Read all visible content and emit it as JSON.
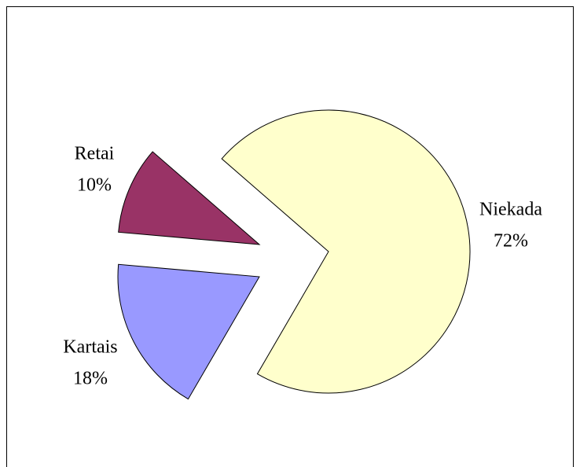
{
  "chart_data": {
    "type": "pie",
    "categories": [
      "Niekada",
      "Kartais",
      "Retai"
    ],
    "values": [
      72,
      18,
      10
    ],
    "value_labels": [
      "72%",
      "18%",
      "10%"
    ],
    "colors": [
      "#ffffcc",
      "#9999ff",
      "#993366"
    ]
  }
}
